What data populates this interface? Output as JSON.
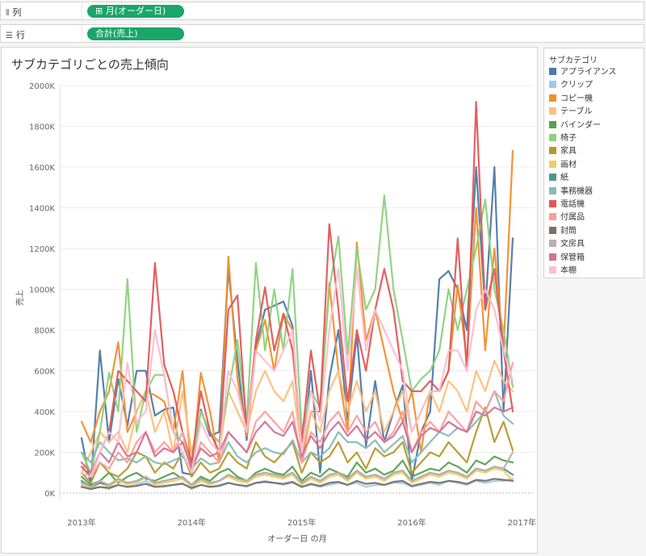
{
  "shelves": {
    "columns": {
      "label": "列",
      "icon": "columns-icon",
      "pill": "⊞ 月(オーダー日)"
    },
    "rows": {
      "label": "行",
      "icon": "rows-icon",
      "pill": "合計(売上)"
    }
  },
  "legend": {
    "title": "サブカテゴリ"
  },
  "chart_data": {
    "type": "line",
    "title": "サブカテゴリごとの売上傾向",
    "xlabel": "オーダー日 の月",
    "ylabel": "売上",
    "ylim": [
      0,
      2000000
    ],
    "yticks": [
      0,
      200000,
      400000,
      600000,
      800000,
      1000000,
      1200000,
      1400000,
      1600000,
      1800000,
      2000000
    ],
    "ytick_labels": [
      "0K",
      "200K",
      "400K",
      "600K",
      "800K",
      "1000K",
      "1200K",
      "1400K",
      "1600K",
      "1800K",
      "2000K"
    ],
    "x_range": [
      "2013-01",
      "2016-12"
    ],
    "xtick_labels": [
      "2013年",
      "2014年",
      "2015年",
      "2016年",
      "2017年"
    ],
    "grid": true,
    "legend_position": "right",
    "categories": [
      "2013-01",
      "2013-02",
      "2013-03",
      "2013-04",
      "2013-05",
      "2013-06",
      "2013-07",
      "2013-08",
      "2013-09",
      "2013-10",
      "2013-11",
      "2013-12",
      "2014-01",
      "2014-02",
      "2014-03",
      "2014-04",
      "2014-05",
      "2014-06",
      "2014-07",
      "2014-08",
      "2014-09",
      "2014-10",
      "2014-11",
      "2014-12",
      "2015-01",
      "2015-02",
      "2015-03",
      "2015-04",
      "2015-05",
      "2015-06",
      "2015-07",
      "2015-08",
      "2015-09",
      "2015-10",
      "2015-11",
      "2015-12",
      "2016-01",
      "2016-02",
      "2016-03",
      "2016-04",
      "2016-05",
      "2016-06",
      "2016-07",
      "2016-08",
      "2016-09",
      "2016-10",
      "2016-11",
      "2016-12"
    ],
    "series": [
      {
        "name": "アプライアンス",
        "color": "#4e79a7",
        "values": [
          270000,
          40000,
          700000,
          250000,
          560000,
          330000,
          600000,
          600000,
          380000,
          410000,
          420000,
          100000,
          90000,
          410000,
          280000,
          300000,
          1100000,
          650000,
          260000,
          720000,
          900000,
          920000,
          940000,
          820000,
          150000,
          600000,
          100000,
          560000,
          800000,
          360000,
          780000,
          230000,
          550000,
          250000,
          400000,
          530000,
          60000,
          300000,
          400000,
          1050000,
          1090000,
          1000000,
          800000,
          1600000,
          900000,
          1600000,
          400000,
          1250000
        ]
      },
      {
        "name": "クリップ",
        "color": "#a0cbe8",
        "values": [
          40000,
          20000,
          30000,
          20000,
          40000,
          30000,
          40000,
          60000,
          30000,
          30000,
          40000,
          50000,
          20000,
          40000,
          30000,
          40000,
          50000,
          40000,
          30000,
          50000,
          60000,
          50000,
          40000,
          50000,
          30000,
          40000,
          30000,
          40000,
          50000,
          40000,
          50000,
          30000,
          40000,
          40000,
          50000,
          50000,
          30000,
          40000,
          50000,
          40000,
          60000,
          50000,
          40000,
          60000,
          50000,
          60000,
          60000,
          70000
        ]
      },
      {
        "name": "コピー機",
        "color": "#f28e2b",
        "values": [
          350000,
          250000,
          400000,
          500000,
          740000,
          300000,
          400000,
          500000,
          480000,
          450000,
          300000,
          600000,
          100000,
          590000,
          400000,
          150000,
          1160000,
          560000,
          280000,
          700000,
          850000,
          600000,
          880000,
          800000,
          150000,
          400000,
          400000,
          1030000,
          600000,
          300000,
          1230000,
          750000,
          900000,
          700000,
          500000,
          350000,
          500000,
          200000,
          500000,
          500000,
          600000,
          1020000,
          650000,
          1400000,
          700000,
          1200000,
          700000,
          1680000
        ]
      },
      {
        "name": "テーブル",
        "color": "#ffbe7d",
        "values": [
          100000,
          200000,
          300000,
          250000,
          300000,
          200000,
          400000,
          500000,
          300000,
          400000,
          200000,
          500000,
          200000,
          400000,
          300000,
          200000,
          500000,
          400000,
          300000,
          500000,
          600000,
          500000,
          450000,
          550000,
          200000,
          400000,
          300000,
          500000,
          600000,
          400000,
          550000,
          400000,
          500000,
          300000,
          400000,
          500000,
          300000,
          400000,
          500000,
          400000,
          550000,
          500000,
          400000,
          600000,
          500000,
          650000,
          550000,
          500000
        ]
      },
      {
        "name": "バインダー",
        "color": "#59a14f",
        "values": [
          80000,
          40000,
          60000,
          100000,
          50000,
          80000,
          100000,
          70000,
          60000,
          80000,
          100000,
          70000,
          40000,
          80000,
          60000,
          100000,
          120000,
          80000,
          60000,
          100000,
          120000,
          100000,
          90000,
          130000,
          60000,
          100000,
          80000,
          120000,
          100000,
          80000,
          150000,
          100000,
          120000,
          90000,
          110000,
          160000,
          80000,
          100000,
          120000,
          110000,
          150000,
          130000,
          100000,
          160000,
          140000,
          180000,
          160000,
          150000
        ]
      },
      {
        "name": "椅子",
        "color": "#8cd17d",
        "values": [
          200000,
          100000,
          300000,
          590000,
          400000,
          1050000,
          300000,
          500000,
          580000,
          580000,
          300000,
          250000,
          150000,
          400000,
          300000,
          250000,
          500000,
          750000,
          350000,
          1130000,
          700000,
          1000000,
          700000,
          1100000,
          300000,
          500000,
          420000,
          1000000,
          1260000,
          680000,
          1200000,
          900000,
          1000000,
          1460000,
          1000000,
          750000,
          500000,
          560000,
          600000,
          700000,
          1000000,
          800000,
          1000000,
          1200000,
          1440000,
          1000000,
          800000,
          520000
        ]
      },
      {
        "name": "家具",
        "color": "#b6992d",
        "values": [
          100000,
          50000,
          150000,
          100000,
          80000,
          120000,
          200000,
          180000,
          100000,
          150000,
          120000,
          200000,
          80000,
          150000,
          100000,
          120000,
          200000,
          150000,
          120000,
          250000,
          180000,
          150000,
          200000,
          250000,
          100000,
          200000,
          150000,
          180000,
          250000,
          150000,
          200000,
          120000,
          220000,
          180000,
          200000,
          250000,
          100000,
          150000,
          200000,
          180000,
          250000,
          200000,
          150000,
          300000,
          420000,
          250000,
          350000,
          210000
        ]
      },
      {
        "name": "画材",
        "color": "#f1ce63",
        "values": [
          40000,
          20000,
          50000,
          30000,
          60000,
          40000,
          50000,
          80000,
          40000,
          50000,
          60000,
          70000,
          30000,
          60000,
          40000,
          60000,
          80000,
          60000,
          50000,
          80000,
          90000,
          80000,
          70000,
          90000,
          40000,
          70000,
          50000,
          80000,
          90000,
          60000,
          100000,
          70000,
          80000,
          60000,
          90000,
          100000,
          50000,
          70000,
          90000,
          80000,
          100000,
          90000,
          70000,
          110000,
          100000,
          120000,
          110000,
          60000
        ]
      },
      {
        "name": "紙",
        "color": "#499894",
        "values": [
          60000,
          30000,
          50000,
          40000,
          70000,
          50000,
          60000,
          80000,
          50000,
          60000,
          70000,
          80000,
          40000,
          70000,
          50000,
          60000,
          90000,
          70000,
          60000,
          90000,
          100000,
          90000,
          80000,
          100000,
          50000,
          80000,
          60000,
          90000,
          100000,
          70000,
          110000,
          80000,
          90000,
          70000,
          100000,
          110000,
          60000,
          80000,
          100000,
          90000,
          110000,
          100000,
          80000,
          120000,
          110000,
          130000,
          120000,
          90000
        ]
      },
      {
        "name": "事務機器",
        "color": "#86bcb6",
        "values": [
          200000,
          150000,
          250000,
          200000,
          160000,
          170000,
          150000,
          180000,
          150000,
          140000,
          160000,
          180000,
          120000,
          170000,
          140000,
          150000,
          250000,
          180000,
          150000,
          200000,
          220000,
          200000,
          190000,
          260000,
          150000,
          200000,
          180000,
          220000,
          300000,
          250000,
          250000,
          220000,
          260000,
          200000,
          240000,
          280000,
          150000,
          200000,
          250000,
          300000,
          280000,
          320000,
          300000,
          350000,
          400000,
          500000,
          380000,
          340000
        ]
      },
      {
        "name": "電話機",
        "color": "#e15759",
        "values": [
          130000,
          80000,
          200000,
          300000,
          600000,
          550000,
          500000,
          450000,
          1130000,
          630000,
          500000,
          300000,
          150000,
          500000,
          300000,
          200000,
          900000,
          970000,
          300000,
          750000,
          1010000,
          700000,
          880000,
          700000,
          250000,
          700000,
          400000,
          1320000,
          900000,
          450000,
          800000,
          600000,
          900000,
          1100000,
          900000,
          550000,
          500000,
          500000,
          550000,
          500000,
          600000,
          1250000,
          600000,
          1920000,
          900000,
          1100000,
          700000,
          400000
        ]
      },
      {
        "name": "付属品",
        "color": "#ff9d9a",
        "values": [
          100000,
          80000,
          150000,
          120000,
          200000,
          150000,
          250000,
          300000,
          200000,
          250000,
          200000,
          300000,
          100000,
          250000,
          200000,
          150000,
          300000,
          250000,
          200000,
          350000,
          400000,
          350000,
          300000,
          400000,
          150000,
          300000,
          250000,
          350000,
          400000,
          300000,
          380000,
          300000,
          350000,
          250000,
          300000,
          400000,
          200000,
          300000,
          350000,
          300000,
          400000,
          350000,
          300000,
          450000,
          400000,
          500000,
          450000,
          640000
        ]
      },
      {
        "name": "封筒",
        "color": "#79706e",
        "values": [
          30000,
          20000,
          30000,
          25000,
          40000,
          30000,
          35000,
          45000,
          30000,
          35000,
          40000,
          45000,
          25000,
          40000,
          30000,
          35000,
          50000,
          40000,
          35000,
          50000,
          55000,
          50000,
          45000,
          55000,
          30000,
          45000,
          35000,
          50000,
          55000,
          40000,
          60000,
          45000,
          50000,
          40000,
          55000,
          60000,
          35000,
          45000,
          55000,
          50000,
          60000,
          55000,
          45000,
          65000,
          60000,
          70000,
          65000,
          60000
        ]
      },
      {
        "name": "文房具",
        "color": "#bab0ac",
        "values": [
          50000,
          30000,
          60000,
          40000,
          70000,
          50000,
          60000,
          80000,
          50000,
          60000,
          70000,
          80000,
          40000,
          70000,
          50000,
          60000,
          90000,
          70000,
          60000,
          90000,
          100000,
          90000,
          80000,
          100000,
          50000,
          80000,
          60000,
          90000,
          100000,
          70000,
          110000,
          80000,
          90000,
          70000,
          100000,
          110000,
          60000,
          80000,
          100000,
          90000,
          110000,
          100000,
          80000,
          120000,
          110000,
          130000,
          120000,
          200000
        ]
      },
      {
        "name": "保管箱",
        "color": "#d37295",
        "values": [
          150000,
          100000,
          200000,
          150000,
          250000,
          180000,
          200000,
          300000,
          180000,
          220000,
          200000,
          250000,
          120000,
          220000,
          180000,
          200000,
          300000,
          250000,
          200000,
          300000,
          350000,
          300000,
          280000,
          350000,
          180000,
          280000,
          220000,
          300000,
          350000,
          280000,
          330000,
          260000,
          300000,
          250000,
          280000,
          350000,
          200000,
          280000,
          320000,
          300000,
          350000,
          320000,
          300000,
          400000,
          380000,
          420000,
          400000,
          420000
        ]
      },
      {
        "name": "本棚",
        "color": "#fabfd2",
        "values": [
          100000,
          80000,
          200000,
          300000,
          250000,
          640000,
          350000,
          400000,
          800000,
          580000,
          300000,
          200000,
          100000,
          350000,
          250000,
          200000,
          600000,
          500000,
          300000,
          700000,
          650000,
          600000,
          700000,
          800000,
          200000,
          500000,
          350000,
          800000,
          1100000,
          600000,
          1100000,
          700000,
          900000,
          800000,
          700000,
          600000,
          300000,
          400000,
          500000,
          500000,
          700000,
          700000,
          600000,
          900000,
          1000000,
          900000,
          700000,
          550000
        ]
      }
    ]
  }
}
